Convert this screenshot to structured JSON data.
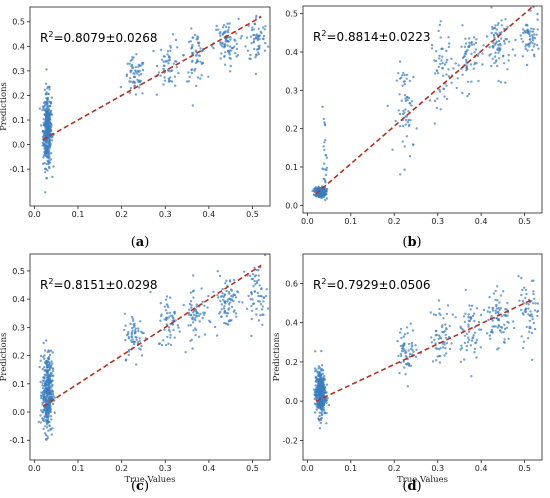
{
  "chart_data": [
    {
      "type": "scatter",
      "caption_letter": "a",
      "annotation": {
        "prefix": "R",
        "sup": "2",
        "value": "=0.8079±0.0268"
      },
      "xlabel": "",
      "ylabel": "Predictions",
      "xlim": [
        -0.01,
        0.54
      ],
      "ylim": [
        -0.25,
        0.56
      ],
      "xticks": [
        "0.0",
        "0.1",
        "0.2",
        "0.3",
        "0.4",
        "0.5"
      ],
      "yticks": [
        "-0.1",
        "0.0",
        "0.1",
        "0.2",
        "0.3",
        "0.4",
        "0.5"
      ],
      "fit_line": {
        "x": [
          0.02,
          0.52
        ],
        "y": [
          0.02,
          0.52
        ]
      },
      "clusters": [
        {
          "x": 0.03,
          "y": 0.06,
          "n": 380,
          "sx": 0.005,
          "sy": 0.075
        },
        {
          "x": 0.23,
          "y": 0.27,
          "n": 60,
          "sx": 0.012,
          "sy": 0.04
        },
        {
          "x": 0.31,
          "y": 0.33,
          "n": 55,
          "sx": 0.013,
          "sy": 0.05
        },
        {
          "x": 0.37,
          "y": 0.36,
          "n": 60,
          "sx": 0.012,
          "sy": 0.05
        },
        {
          "x": 0.44,
          "y": 0.41,
          "n": 80,
          "sx": 0.014,
          "sy": 0.05
        },
        {
          "x": 0.51,
          "y": 0.43,
          "n": 60,
          "sx": 0.012,
          "sy": 0.05
        }
      ]
    },
    {
      "type": "scatter",
      "caption_letter": "b",
      "annotation": {
        "prefix": "R",
        "sup": "2",
        "value": "=0.8814±0.0223"
      },
      "xlabel": "",
      "ylabel": "",
      "xlim": [
        -0.01,
        0.54
      ],
      "ylim": [
        -0.02,
        0.52
      ],
      "xticks": [
        "0.0",
        "0.1",
        "0.2",
        "0.3",
        "0.4",
        "0.5"
      ],
      "yticks": [
        "0.0",
        "0.1",
        "0.2",
        "0.3",
        "0.4",
        "0.5"
      ],
      "fit_line": {
        "x": [
          0.02,
          0.52
        ],
        "y": [
          0.03,
          0.52
        ]
      },
      "clusters": [
        {
          "x": 0.03,
          "y": 0.035,
          "n": 300,
          "sx": 0.006,
          "sy": 0.006
        },
        {
          "x": 0.04,
          "y": 0.1,
          "n": 30,
          "sx": 0.003,
          "sy": 0.07
        },
        {
          "x": 0.23,
          "y": 0.25,
          "n": 60,
          "sx": 0.012,
          "sy": 0.06
        },
        {
          "x": 0.31,
          "y": 0.36,
          "n": 55,
          "sx": 0.013,
          "sy": 0.05
        },
        {
          "x": 0.37,
          "y": 0.38,
          "n": 60,
          "sx": 0.012,
          "sy": 0.04
        },
        {
          "x": 0.44,
          "y": 0.42,
          "n": 80,
          "sx": 0.014,
          "sy": 0.04
        },
        {
          "x": 0.51,
          "y": 0.43,
          "n": 60,
          "sx": 0.012,
          "sy": 0.03
        }
      ]
    },
    {
      "type": "scatter",
      "caption_letter": "c",
      "annotation": {
        "prefix": "R",
        "sup": "2",
        "value": "=0.8151±0.0298"
      },
      "xlabel": "True Values",
      "ylabel": "Predictions",
      "xlim": [
        -0.01,
        0.54
      ],
      "ylim": [
        -0.17,
        0.56
      ],
      "xticks": [
        "0.0",
        "0.1",
        "0.2",
        "0.3",
        "0.4",
        "0.5"
      ],
      "yticks": [
        "-0.1",
        "0.0",
        "0.1",
        "0.2",
        "0.3",
        "0.4",
        "0.5"
      ],
      "fit_line": {
        "x": [
          0.02,
          0.52
        ],
        "y": [
          0.02,
          0.52
        ]
      },
      "clusters": [
        {
          "x": 0.03,
          "y": 0.07,
          "n": 380,
          "sx": 0.006,
          "sy": 0.07
        },
        {
          "x": 0.23,
          "y": 0.27,
          "n": 60,
          "sx": 0.012,
          "sy": 0.04
        },
        {
          "x": 0.31,
          "y": 0.32,
          "n": 55,
          "sx": 0.013,
          "sy": 0.05
        },
        {
          "x": 0.37,
          "y": 0.36,
          "n": 60,
          "sx": 0.012,
          "sy": 0.05
        },
        {
          "x": 0.44,
          "y": 0.39,
          "n": 80,
          "sx": 0.014,
          "sy": 0.05
        },
        {
          "x": 0.51,
          "y": 0.42,
          "n": 60,
          "sx": 0.012,
          "sy": 0.05
        }
      ]
    },
    {
      "type": "scatter",
      "caption_letter": "d",
      "annotation": {
        "prefix": "R",
        "sup": "2",
        "value": "=0.7929±0.0506"
      },
      "xlabel": "True Values",
      "ylabel": "Predictions",
      "xlim": [
        -0.01,
        0.54
      ],
      "ylim": [
        -0.3,
        0.75
      ],
      "xticks": [
        "0.0",
        "0.1",
        "0.2",
        "0.3",
        "0.4",
        "0.5"
      ],
      "yticks": [
        "-0.2",
        "0.0",
        "0.2",
        "0.4",
        "0.6"
      ],
      "fit_line": {
        "x": [
          0.02,
          0.52
        ],
        "y": [
          0.0,
          0.52
        ]
      },
      "clusters": [
        {
          "x": 0.03,
          "y": 0.04,
          "n": 380,
          "sx": 0.006,
          "sy": 0.06
        },
        {
          "x": 0.23,
          "y": 0.26,
          "n": 60,
          "sx": 0.012,
          "sy": 0.06
        },
        {
          "x": 0.31,
          "y": 0.34,
          "n": 55,
          "sx": 0.013,
          "sy": 0.08
        },
        {
          "x": 0.37,
          "y": 0.37,
          "n": 60,
          "sx": 0.012,
          "sy": 0.08
        },
        {
          "x": 0.44,
          "y": 0.42,
          "n": 80,
          "sx": 0.014,
          "sy": 0.08
        },
        {
          "x": 0.51,
          "y": 0.46,
          "n": 60,
          "sx": 0.012,
          "sy": 0.08
        }
      ]
    }
  ],
  "colors": {
    "points": "#3a7ebf",
    "fit_line": "#b5301f",
    "axes": "#222222"
  }
}
